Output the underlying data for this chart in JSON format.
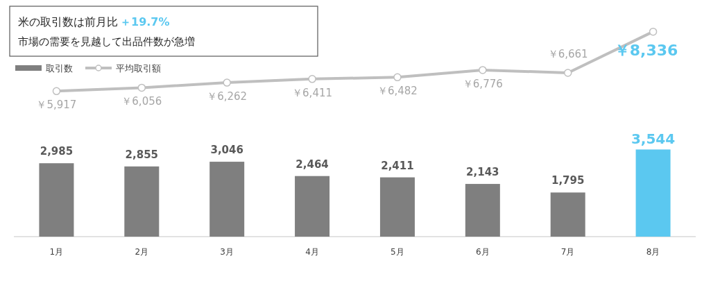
{
  "chart_data": {
    "type": "bar",
    "title": "米の取引数は前月比",
    "subtitle": "市場の需要を見越して出品件数が急増",
    "annotations": [
      "＋19.7%"
    ],
    "categories": [
      "1月",
      "2月",
      "3月",
      "4月",
      "5月",
      "6月",
      "7月",
      "8月"
    ],
    "tick_labels": "x",
    "legend": "top left",
    "series": [
      {
        "name": "取引数",
        "color": "#7f7f7f",
        "colors": [
          "#7f7f7f",
          "#7f7f7f",
          "#7f7f7f",
          "#7f7f7f",
          "#7f7f7f",
          "#7f7f7f",
          "#7f7f7f",
          "#5bc8f0"
        ],
        "values": [
          2985,
          2855,
          3046,
          2464,
          2411,
          2143,
          1795,
          3544
        ],
        "value_labels": [
          "2,985",
          "2,855",
          "3,046",
          "2,464",
          "2,411",
          "2,143",
          "1,795",
          "3,544"
        ]
      },
      {
        "name": "平均取引額",
        "type": "line",
        "color": "#bfbfbf",
        "marker": "circle",
        "values": [
          5917,
          6056,
          6262,
          6411,
          6482,
          6776,
          6661,
          8336
        ],
        "value_labels": [
          "￥5,917",
          "￥6,056",
          "￥6,262",
          "￥6,411",
          "￥6,482",
          "￥6,776",
          "￥6,661",
          "￥8,336"
        ]
      }
    ]
  }
}
